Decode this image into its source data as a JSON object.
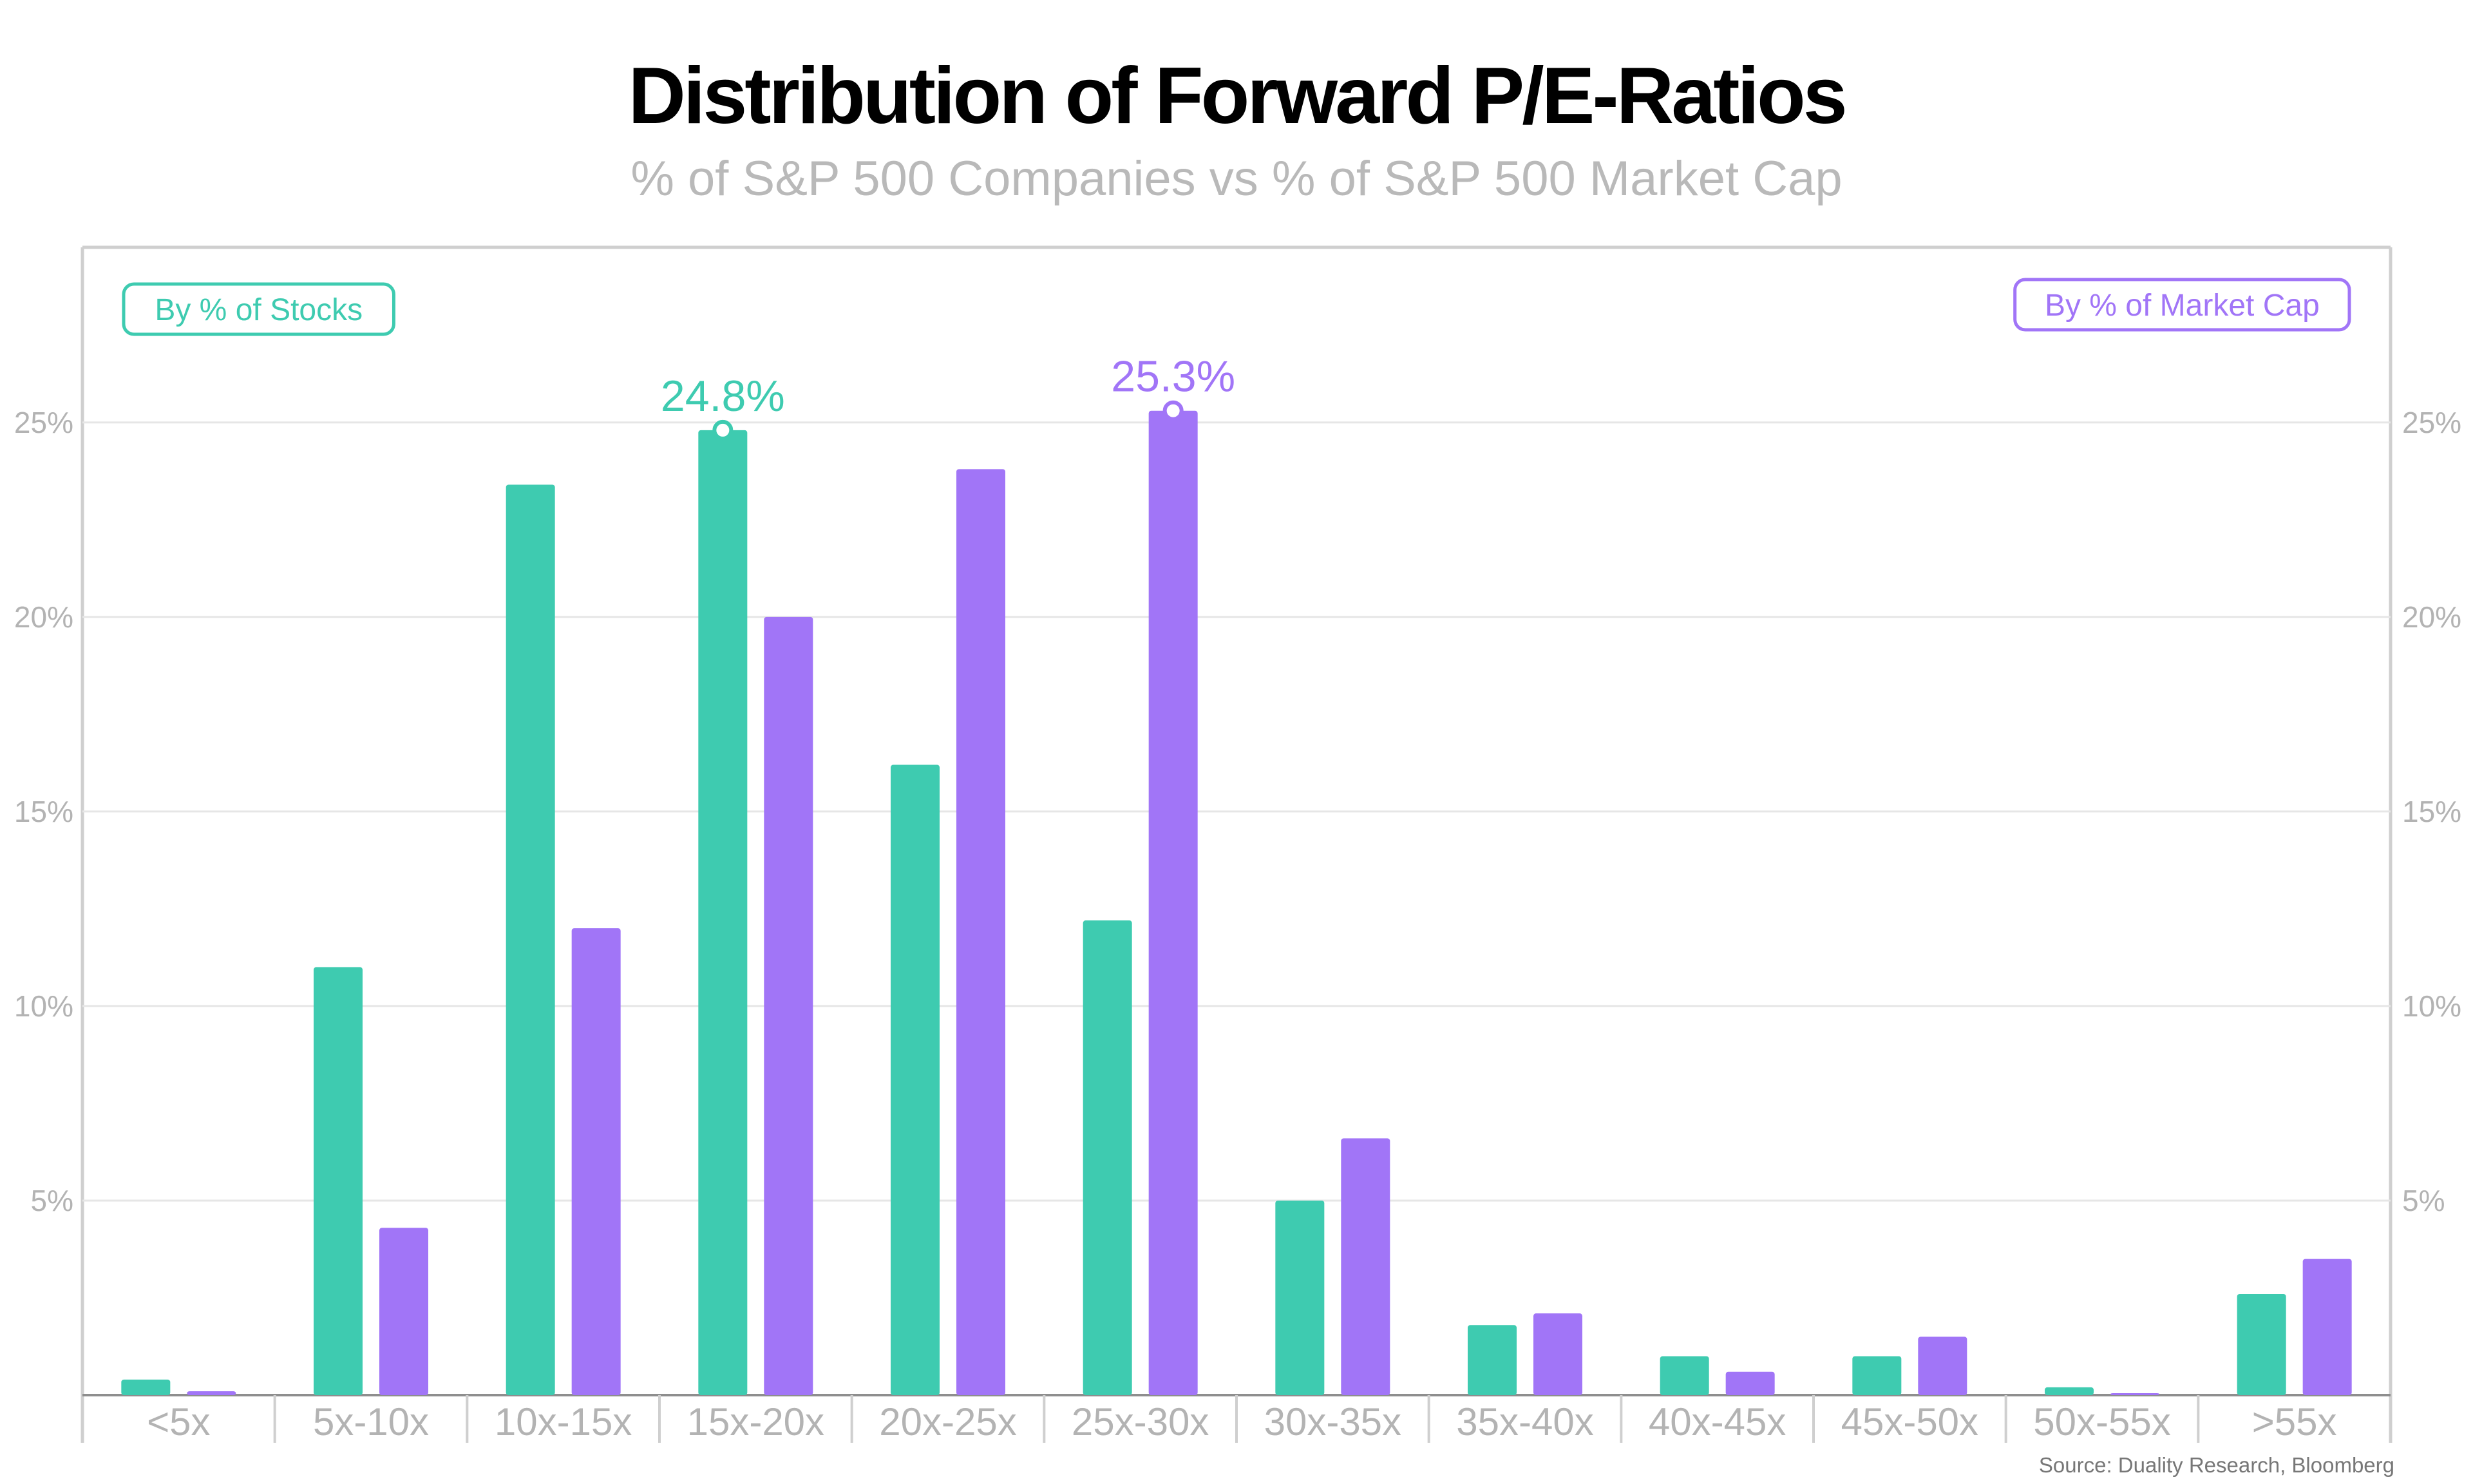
{
  "title": "Distribution of Forward P/E-Ratios",
  "subtitle": "% of S&P 500 Companies vs % of S&P 500 Market Cap",
  "source": "Source: Duality Research, Bloomberg",
  "colors": {
    "stocks": "#3ecbb0",
    "market_cap": "#a175f7",
    "grid": "#e6e6e6",
    "frame": "#cfcfcf",
    "tick_text": "#b3b3b3"
  },
  "chart_data": {
    "type": "bar",
    "title": "Distribution of Forward P/E-Ratios",
    "subtitle": "% of S&P 500 Companies vs % of S&P 500 Market Cap",
    "categories": [
      "<5x",
      "5x-10x",
      "10x-15x",
      "15x-20x",
      "20x-25x",
      "25x-30x",
      "30x-35x",
      "35x-40x",
      "40x-45x",
      "45x-50x",
      "50x-55x",
      ">55x"
    ],
    "series": [
      {
        "name": "By % of Stocks",
        "color": "#3ecbb0",
        "values": [
          0.4,
          11.0,
          23.4,
          24.8,
          16.2,
          12.2,
          5.0,
          1.8,
          1.0,
          1.0,
          0.2,
          2.6
        ]
      },
      {
        "name": "By % of Market Cap",
        "color": "#a175f7",
        "values": [
          0.1,
          4.3,
          12.0,
          20.0,
          23.8,
          25.3,
          6.6,
          2.1,
          0.6,
          1.5,
          0.05,
          3.5
        ]
      }
    ],
    "annotations": [
      {
        "series": 0,
        "category": "15x-20x",
        "label": "24.8%"
      },
      {
        "series": 1,
        "category": "25x-30x",
        "label": "25.3%"
      }
    ],
    "legend": [
      {
        "label": "By % of Stocks",
        "position": "top-left",
        "series": 0
      },
      {
        "label": "By % of Market Cap",
        "position": "top-right",
        "series": 1
      }
    ],
    "yticks": [
      "5%",
      "10%",
      "15%",
      "20%",
      "25%"
    ],
    "ytick_values": [
      5,
      10,
      15,
      20,
      25
    ],
    "ylim": [
      0,
      29.5
    ],
    "grid": true,
    "xlabel": "",
    "ylabel": ""
  }
}
